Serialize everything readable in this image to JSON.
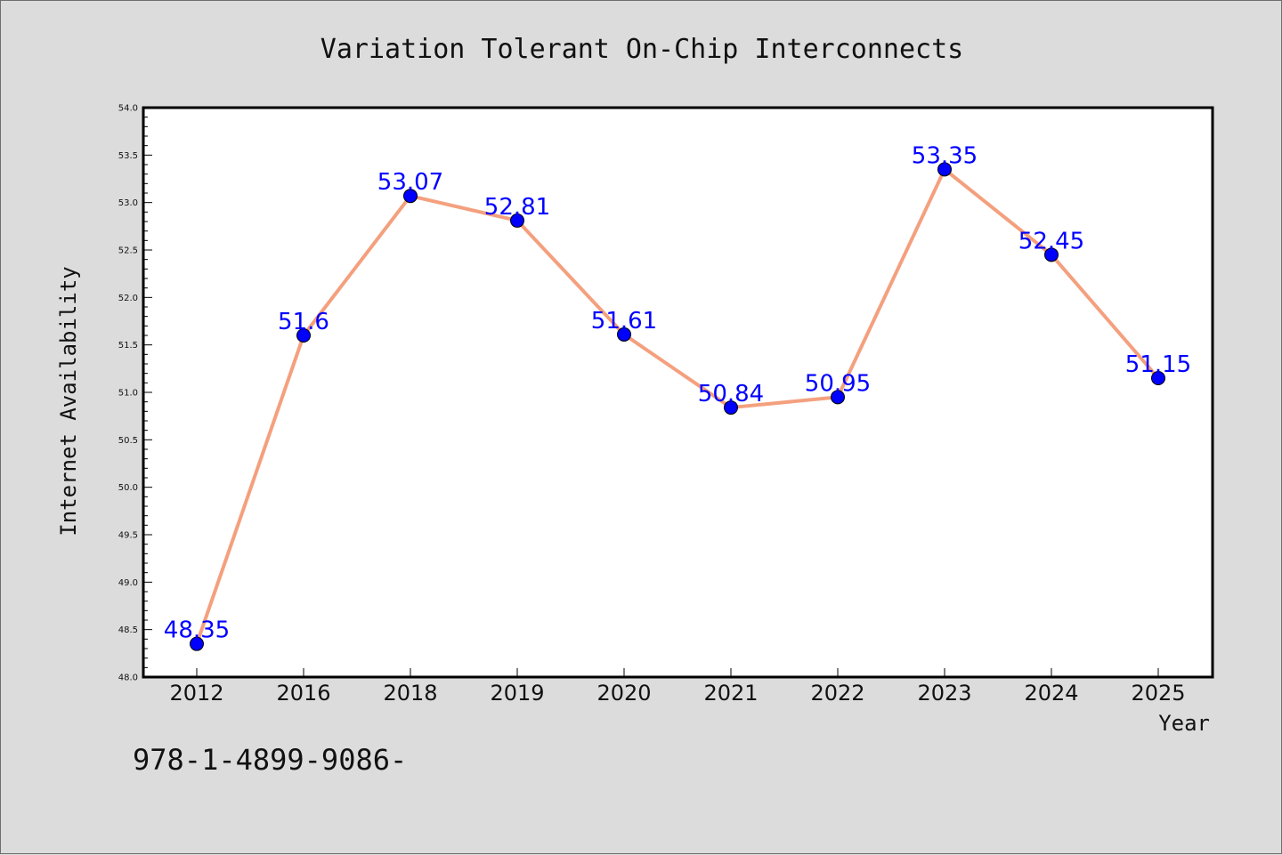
{
  "chart_data": {
    "type": "line",
    "title": "Variation Tolerant On-Chip Interconnects",
    "xlabel": "Year",
    "ylabel": "Internet Availability",
    "categories": [
      "2012",
      "2016",
      "2018",
      "2019",
      "2020",
      "2021",
      "2022",
      "2023",
      "2024",
      "2025"
    ],
    "series": [
      {
        "values": [
          48.35,
          51.6,
          53.07,
          52.81,
          51.61,
          50.84,
          50.95,
          53.35,
          52.45,
          51.15
        ],
        "data_labels": [
          "48.35",
          "51.6",
          "53.07",
          "52.81",
          "51.61",
          "50.84",
          "50.95",
          "53.35",
          "52.45",
          "51.15"
        ]
      }
    ],
    "ylim": [
      48.0,
      54.0
    ],
    "y_ticks": [
      "48.0",
      "48.5",
      "49.0",
      "49.5",
      "50.0",
      "50.5",
      "51.0",
      "51.5",
      "52.0",
      "52.5",
      "53.0",
      "53.5",
      "54.0"
    ],
    "grid": false,
    "legend": "none",
    "colors": {
      "line": "#f4a07e",
      "marker": "#0000ff",
      "data_label": "#0000ff",
      "background": "#dcdcdc",
      "plot_area": "#ffffff"
    }
  },
  "footer_text": "978-1-4899-9086-"
}
